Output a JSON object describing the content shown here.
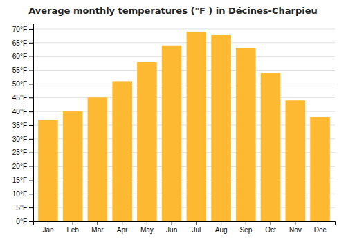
{
  "chart_data": {
    "type": "bar",
    "title": "Average monthly temperatures (°F ) in Décines-Charpieu",
    "categories": [
      "Jan",
      "Feb",
      "Mar",
      "Apr",
      "May",
      "Jun",
      "Jul",
      "Aug",
      "Sep",
      "Oct",
      "Nov",
      "Dec"
    ],
    "values": [
      37,
      40,
      45,
      51,
      58,
      64,
      69,
      68,
      63,
      54,
      44,
      38
    ],
    "color": "#FDB931",
    "ylim": [
      0,
      72
    ],
    "yticks": [
      {
        "value": 0,
        "label": "0°F"
      },
      {
        "value": 5,
        "label": "5°F"
      },
      {
        "value": 10,
        "label": "10°F"
      },
      {
        "value": 15,
        "label": "15°F"
      },
      {
        "value": 20,
        "label": "20°F"
      },
      {
        "value": 25,
        "label": "25°F"
      },
      {
        "value": 30,
        "label": "30°F"
      },
      {
        "value": 35,
        "label": "35°F"
      },
      {
        "value": 40,
        "label": "40°F"
      },
      {
        "value": 45,
        "label": "45°F"
      },
      {
        "value": 50,
        "label": "50°F"
      },
      {
        "value": 55,
        "label": "55°F"
      },
      {
        "value": 60,
        "label": "60°F"
      },
      {
        "value": 65,
        "label": "65°F"
      },
      {
        "value": 70,
        "label": "70°F"
      }
    ],
    "grid": true
  }
}
